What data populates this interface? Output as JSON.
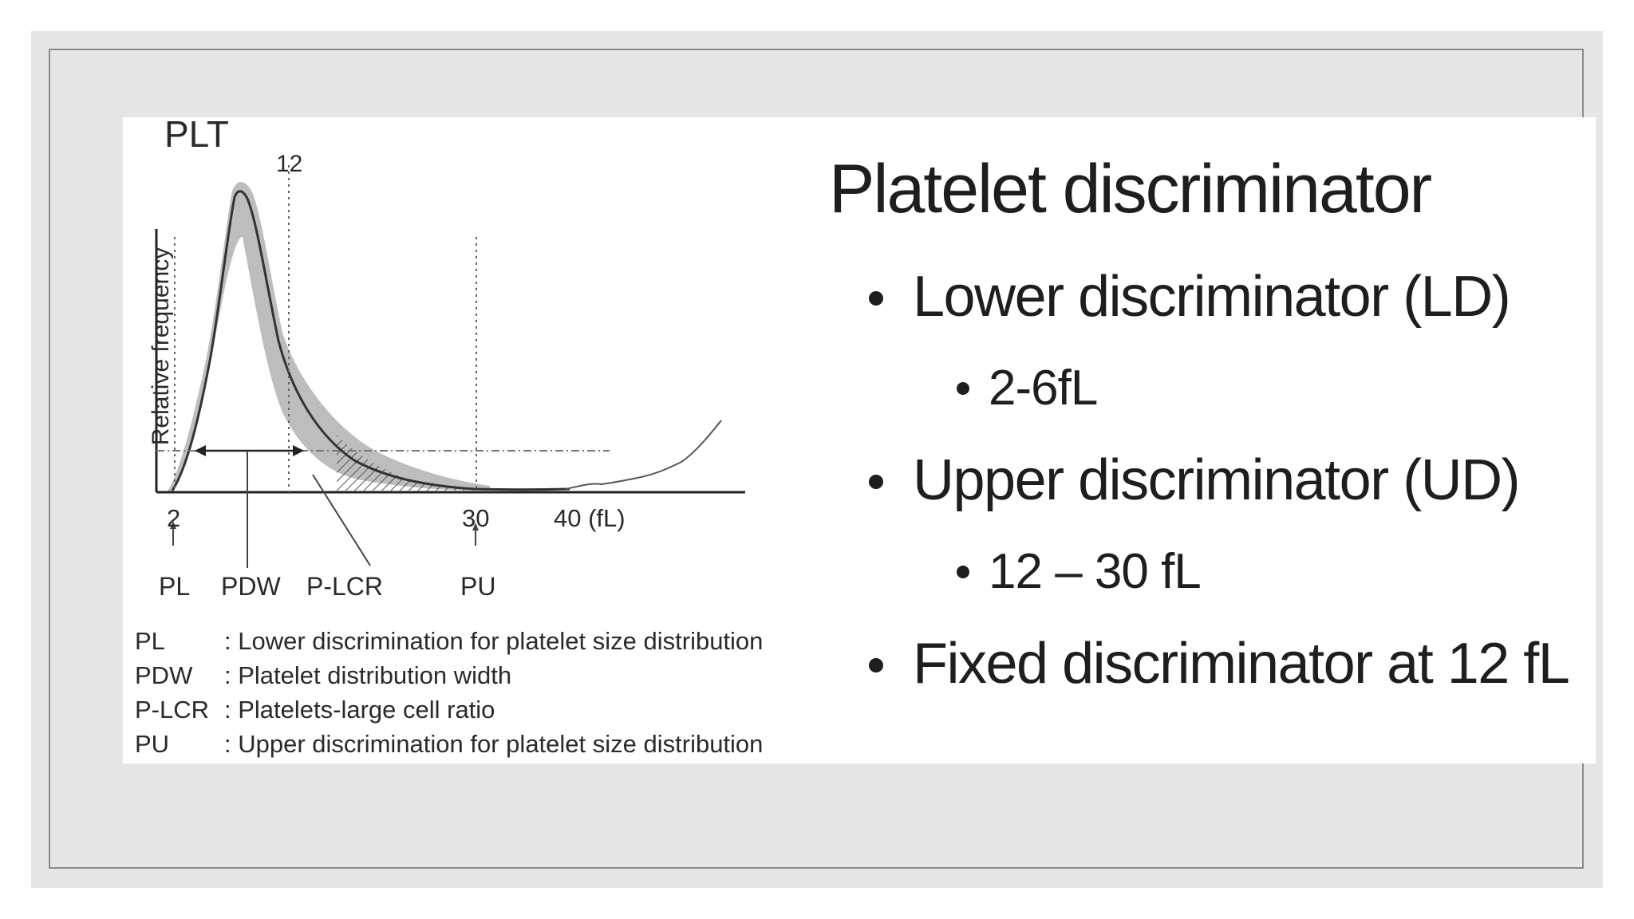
{
  "diagram": {
    "title": "PLT",
    "y_axis_label": "Relative frequency",
    "top_tick": "12",
    "x_ticks": [
      "2",
      "30",
      "40 (fL)"
    ],
    "markers": [
      "PL",
      "PDW",
      "P-LCR",
      "PU"
    ],
    "legend": [
      {
        "abbr": "PL",
        "desc": ": Lower discrimination for platelet size distribution"
      },
      {
        "abbr": "PDW",
        "desc": ": Platelet distribution width"
      },
      {
        "abbr": "P-LCR",
        "desc": ": Platelets-large cell ratio"
      },
      {
        "abbr": "PU",
        "desc": ": Upper discrimination for platelet size distribution"
      }
    ]
  },
  "text": {
    "heading": "Platelet discriminator",
    "bullets": [
      {
        "level": 1,
        "text": "Lower discriminator (LD)"
      },
      {
        "level": 2,
        "text": "2-6fL"
      },
      {
        "level": 1,
        "text": "Upper discriminator (UD)"
      },
      {
        "level": 2,
        "text": "12 – 30 fL"
      },
      {
        "level": 1,
        "text": "Fixed discriminator at 12 fL"
      }
    ]
  },
  "colors": {
    "background": "#e6e6e6",
    "frame": "#8a8a8a",
    "slide": "#ffffff",
    "band": "#b9b9b9",
    "text": "#1e1e1e"
  }
}
